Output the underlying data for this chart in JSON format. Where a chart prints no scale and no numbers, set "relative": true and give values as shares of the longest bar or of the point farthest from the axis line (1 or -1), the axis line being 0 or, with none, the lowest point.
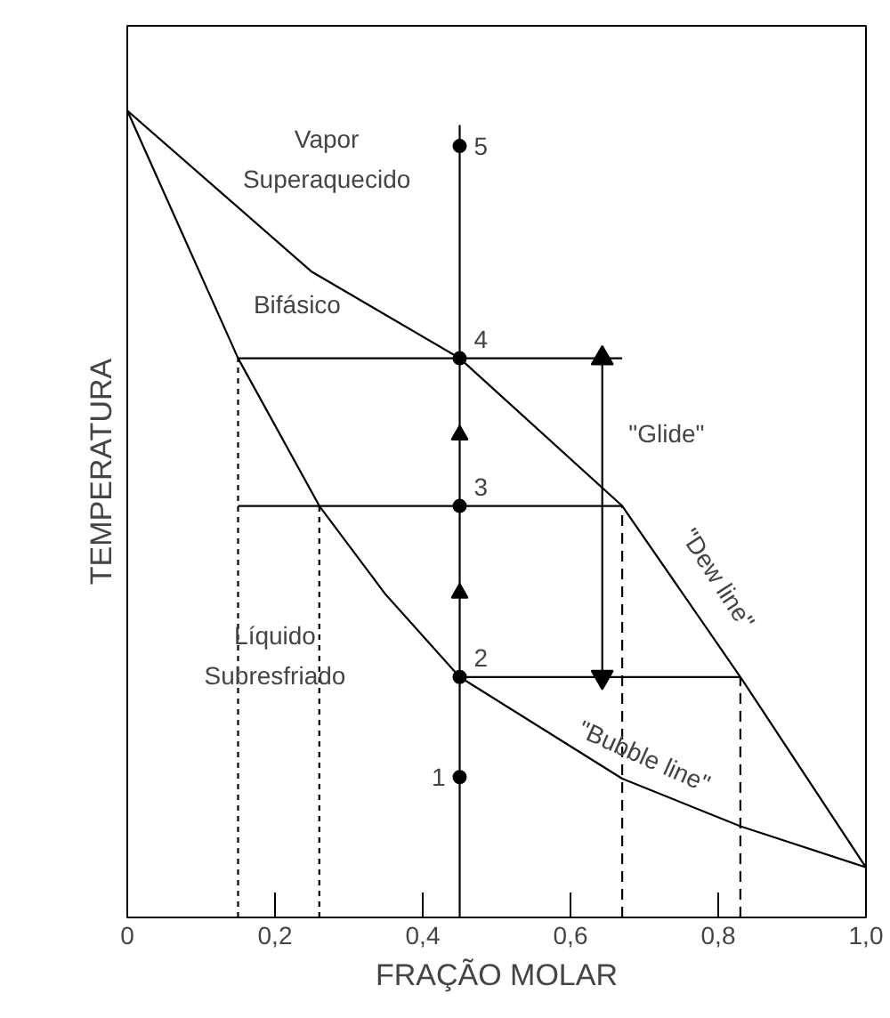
{
  "chart_data": {
    "type": "line",
    "relative": true,
    "xlabel": "FRAÇÃO MOLAR",
    "ylabel": "TEMPERATURA",
    "xlim": [
      0,
      1
    ],
    "xticks": [
      {
        "value": 0,
        "label": "0"
      },
      {
        "value": 0.2,
        "label": "0,2"
      },
      {
        "value": 0.4,
        "label": "0,4"
      },
      {
        "value": 0.6,
        "label": "0,6"
      },
      {
        "value": 0.8,
        "label": "0,8"
      },
      {
        "value": 1,
        "label": "1,0"
      }
    ],
    "grid": false,
    "series": [
      {
        "color": "#000000",
        "x": [
          0,
          0.25,
          0.45,
          0.67,
          0.83,
          1
        ],
        "values": [
          1,
          0.8,
          0.693,
          0.51,
          0.298,
          0.062
        ]
      },
      {
        "color": "#000000",
        "x": [
          0,
          0.15,
          0.26,
          0.35,
          0.45,
          0.67,
          0.83,
          1
        ],
        "values": [
          1,
          0.693,
          0.51,
          0.4,
          0.298,
          0.172,
          0.113,
          0.062
        ]
      },
      {
        "color": "#000000",
        "x": [
          0.45,
          0.45
        ],
        "values": [
          0,
          0.982
        ]
      },
      {
        "color": "#000000",
        "x": [
          0.15,
          0.67
        ],
        "values": [
          0.693,
          0.693
        ]
      },
      {
        "color": "#000000",
        "x": [
          0.15,
          0.67
        ],
        "values": [
          0.51,
          0.51
        ]
      },
      {
        "color": "#000000",
        "x": [
          0.45,
          0.83
        ],
        "values": [
          0.298,
          0.298
        ]
      },
      {
        "color": "#000000",
        "line_style": "dotted",
        "x": [
          0.15,
          0.15
        ],
        "values": [
          0,
          0.693
        ]
      },
      {
        "color": "#000000",
        "line_style": "dotted",
        "x": [
          0.26,
          0.26
        ],
        "values": [
          0,
          0.51
        ]
      },
      {
        "color": "#000000",
        "line_style": "dashed",
        "x": [
          0.67,
          0.67
        ],
        "values": [
          0,
          0.51
        ]
      },
      {
        "color": "#000000",
        "line_style": "dashed",
        "x": [
          0.83,
          0.83
        ],
        "values": [
          0,
          0.298
        ]
      },
      {
        "color": "#000000",
        "marker": "triangle",
        "x": [
          0.643,
          0.643
        ],
        "values": [
          0.693,
          0.298
        ]
      },
      {
        "type": "scatter",
        "color": "#000000",
        "marker": "triangle",
        "x": [
          0.45,
          0.45
        ],
        "values": [
          0.402,
          0.598
        ]
      },
      {
        "type": "scatter",
        "name": "1",
        "color": "#000000",
        "marker": "circle",
        "x": [
          0.45
        ],
        "values": [
          0.174
        ]
      },
      {
        "type": "scatter",
        "name": "2",
        "color": "#000000",
        "marker": "circle",
        "x": [
          0.45
        ],
        "values": [
          0.298
        ]
      },
      {
        "type": "scatter",
        "name": "3",
        "color": "#000000",
        "marker": "circle",
        "x": [
          0.45
        ],
        "values": [
          0.51
        ]
      },
      {
        "type": "scatter",
        "name": "4",
        "color": "#000000",
        "marker": "circle",
        "x": [
          0.45
        ],
        "values": [
          0.693
        ]
      },
      {
        "type": "scatter",
        "name": "5",
        "color": "#000000",
        "marker": "circle",
        "x": [
          0.45
        ],
        "values": [
          0.956
        ]
      }
    ],
    "annotations": [
      "Vapor",
      "Superaquecido",
      "Bifásico",
      "\"Glide\"",
      "\"Dew line\"",
      "Líquido",
      "Subresfriado",
      "\"Bubble line\""
    ]
  }
}
